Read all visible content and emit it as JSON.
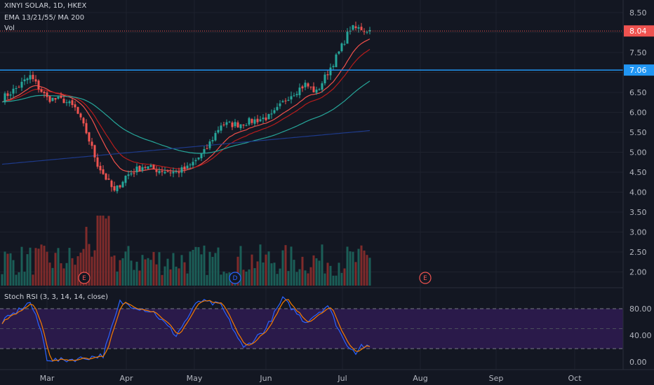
{
  "header": {
    "title": "XINYI SOLAR, 1D, HKEX",
    "indicators": "EMA 13/21/55/ MA 200",
    "volume_label": "Vol"
  },
  "price_axis": {
    "ticks": [
      "8.50",
      "8.00",
      "7.50",
      "7.00",
      "6.50",
      "6.00",
      "5.50",
      "5.00",
      "4.50",
      "4.00",
      "3.50",
      "3.00",
      "2.50",
      "2.00"
    ],
    "current_price_tag": "8.04",
    "level_tag": "7.06"
  },
  "oscillator": {
    "title": "Stoch RSI (3, 3, 14, 14, close)",
    "ticks": [
      "80.00",
      "40.00",
      "0.00"
    ],
    "upper_band": 80,
    "lower_band": 20
  },
  "time_axis": {
    "labels": [
      "Mar",
      "Apr",
      "May",
      "Jun",
      "Jul",
      "Aug",
      "Sep",
      "Oct"
    ]
  },
  "events": [
    "E",
    "D",
    "E"
  ],
  "colors": {
    "background": "#131722",
    "up": "#26a69a",
    "down": "#ef5350",
    "ema13": "#f0504b",
    "ema21": "#b71c1c",
    "ema55": "#26a69a",
    "ma200": "#1e3a8a",
    "level_line": "#2196f3",
    "stoch_k": "#2962ff",
    "stoch_d": "#f57c00",
    "stoch_band_fill": "#2a1a4a"
  },
  "chart_data": {
    "type": "candlestick",
    "symbol": "XINYI SOLAR",
    "interval": "1D",
    "exchange": "HKEX",
    "y_range": [
      1.7,
      8.6
    ],
    "price_level_line": 7.06,
    "current_price": 8.04,
    "period_start": "2020-02-17",
    "period_end": "2020-07-13"
  }
}
